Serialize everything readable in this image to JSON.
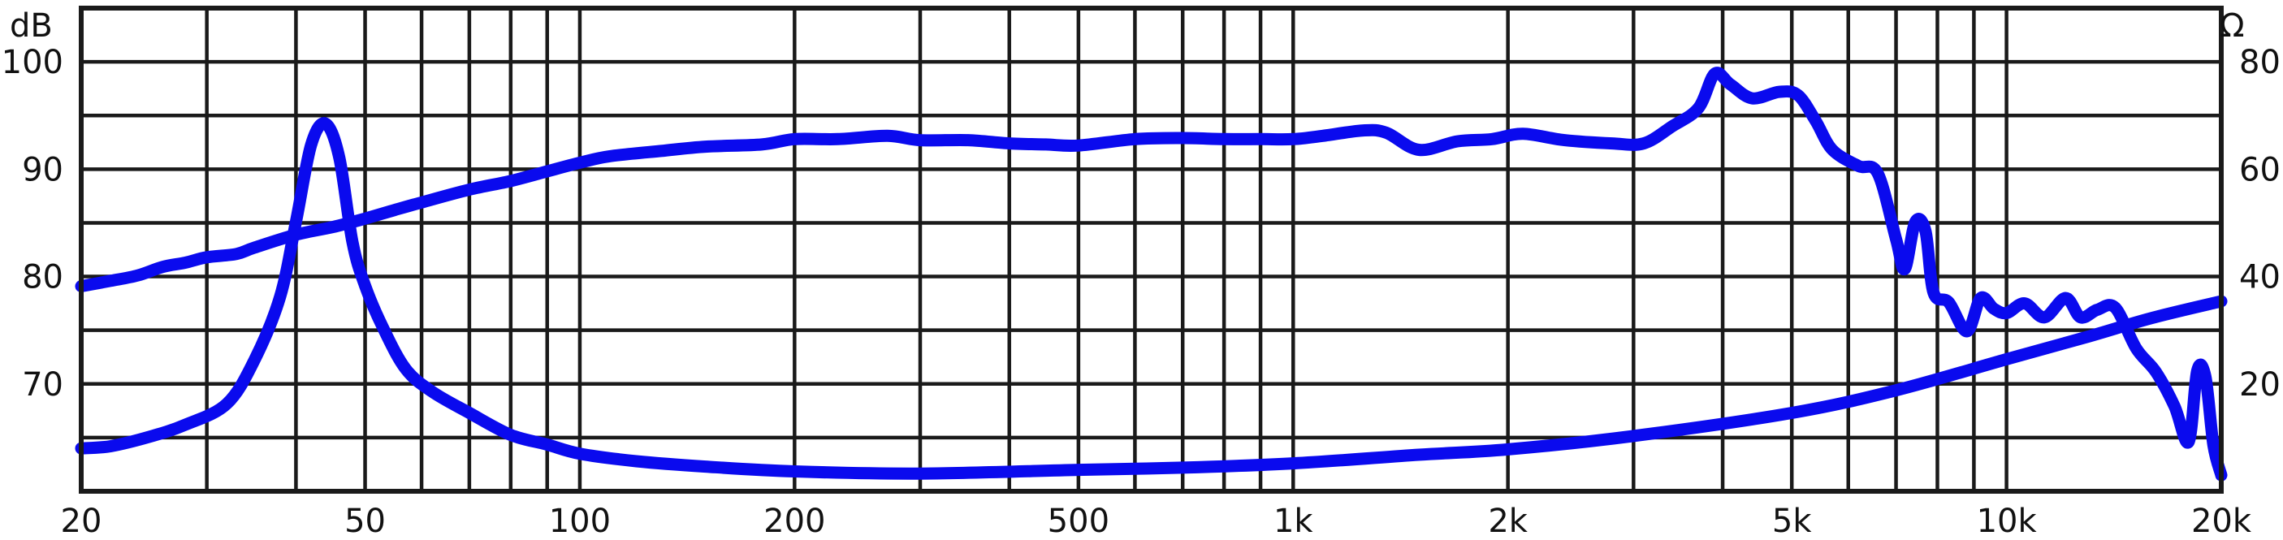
{
  "chart_data": {
    "type": "line",
    "x_scale": "log",
    "xlim": [
      20,
      20000
    ],
    "ylim_left": [
      60,
      105
    ],
    "ylim_right": [
      0,
      90
    ],
    "ylabel_left_unit": "dB",
    "ylabel_right_unit": "Ω",
    "grid": true,
    "x_ticks": [
      {
        "value": 20,
        "label": "20"
      },
      {
        "value": 50,
        "label": "50"
      },
      {
        "value": 100,
        "label": "100"
      },
      {
        "value": 200,
        "label": "200"
      },
      {
        "value": 500,
        "label": "500"
      },
      {
        "value": 1000,
        "label": "1k"
      },
      {
        "value": 2000,
        "label": "2k"
      },
      {
        "value": 5000,
        "label": "5k"
      },
      {
        "value": 10000,
        "label": "10k"
      },
      {
        "value": 20000,
        "label": "20k"
      }
    ],
    "x_minor_grid": [
      30,
      40,
      60,
      70,
      80,
      90,
      300,
      400,
      600,
      700,
      800,
      900,
      3000,
      4000,
      6000,
      7000,
      8000,
      9000
    ],
    "y_ticks_left": [
      {
        "value": 70,
        "label": "70"
      },
      {
        "value": 80,
        "label": "80"
      },
      {
        "value": 90,
        "label": "90"
      },
      {
        "value": 100,
        "label": "100"
      }
    ],
    "y_ticks_right": [
      {
        "value": 20,
        "label": "20"
      },
      {
        "value": 40,
        "label": "40"
      },
      {
        "value": 60,
        "label": "60"
      },
      {
        "value": 80,
        "label": "80"
      }
    ],
    "y_grid_left": [
      65,
      70,
      75,
      80,
      85,
      90,
      95,
      100,
      105
    ],
    "series": [
      {
        "axis": "left",
        "color": "#0a0aee",
        "points": [
          [
            20,
            79.1
          ],
          [
            22,
            79.6
          ],
          [
            24,
            80.1
          ],
          [
            26,
            80.9
          ],
          [
            28,
            81.3
          ],
          [
            30,
            81.8
          ],
          [
            33,
            82.1
          ],
          [
            35,
            82.7
          ],
          [
            40,
            83.9
          ],
          [
            45,
            84.6
          ],
          [
            50,
            85.4
          ],
          [
            55,
            86.2
          ],
          [
            60,
            86.9
          ],
          [
            70,
            88.1
          ],
          [
            80,
            88.9
          ],
          [
            90,
            89.8
          ],
          [
            100,
            90.6
          ],
          [
            110,
            91.2
          ],
          [
            130,
            91.7
          ],
          [
            150,
            92.1
          ],
          [
            180,
            92.3
          ],
          [
            200,
            92.8
          ],
          [
            230,
            92.8
          ],
          [
            270,
            93.1
          ],
          [
            300,
            92.7
          ],
          [
            350,
            92.7
          ],
          [
            400,
            92.4
          ],
          [
            450,
            92.3
          ],
          [
            500,
            92.2
          ],
          [
            600,
            92.8
          ],
          [
            700,
            92.9
          ],
          [
            800,
            92.8
          ],
          [
            900,
            92.8
          ],
          [
            1000,
            92.8
          ],
          [
            1100,
            93.1
          ],
          [
            1250,
            93.6
          ],
          [
            1350,
            93.4
          ],
          [
            1500,
            91.8
          ],
          [
            1700,
            92.6
          ],
          [
            1900,
            92.8
          ],
          [
            2100,
            93.3
          ],
          [
            2400,
            92.7
          ],
          [
            2800,
            92.4
          ],
          [
            3100,
            92.4
          ],
          [
            3400,
            94.0
          ],
          [
            3700,
            95.7
          ],
          [
            3900,
            98.9
          ],
          [
            4100,
            97.9
          ],
          [
            4400,
            96.6
          ],
          [
            4800,
            97.2
          ],
          [
            5100,
            96.9
          ],
          [
            5400,
            94.5
          ],
          [
            5700,
            91.8
          ],
          [
            6200,
            90.3
          ],
          [
            6600,
            89.6
          ],
          [
            7000,
            83.5
          ],
          [
            7200,
            80.7
          ],
          [
            7450,
            85.1
          ],
          [
            7700,
            84.2
          ],
          [
            7900,
            78.5
          ],
          [
            8300,
            77.6
          ],
          [
            8800,
            74.9
          ],
          [
            9200,
            78.0
          ],
          [
            9600,
            77.0
          ],
          [
            10000,
            76.6
          ],
          [
            10600,
            77.5
          ],
          [
            11300,
            76.2
          ],
          [
            12100,
            78.0
          ],
          [
            12700,
            76.2
          ],
          [
            13400,
            76.9
          ],
          [
            14200,
            77.1
          ],
          [
            15200,
            73.3
          ],
          [
            16200,
            71.1
          ],
          [
            17200,
            67.9
          ],
          [
            18000,
            64.6
          ],
          [
            18500,
            71.2
          ],
          [
            19000,
            70.7
          ],
          [
            19500,
            64.3
          ],
          [
            20000,
            61.5
          ]
        ]
      },
      {
        "axis": "right",
        "color": "#0a0aee",
        "points": [
          [
            20,
            8.0
          ],
          [
            22,
            8.4
          ],
          [
            25,
            10.2
          ],
          [
            28,
            12.4
          ],
          [
            32,
            16.3
          ],
          [
            35,
            24.5
          ],
          [
            38,
            36.2
          ],
          [
            40,
            50.2
          ],
          [
            42,
            64.5
          ],
          [
            44,
            68.5
          ],
          [
            46,
            62.2
          ],
          [
            48,
            46.4
          ],
          [
            50,
            38.3
          ],
          [
            53,
            30.4
          ],
          [
            57,
            22.8
          ],
          [
            62,
            18.6
          ],
          [
            70,
            14.6
          ],
          [
            80,
            10.5
          ],
          [
            90,
            8.7
          ],
          [
            100,
            7.0
          ],
          [
            120,
            5.6
          ],
          [
            150,
            4.6
          ],
          [
            200,
            3.7
          ],
          [
            300,
            3.3
          ],
          [
            500,
            4.0
          ],
          [
            700,
            4.4
          ],
          [
            1000,
            5.2
          ],
          [
            1500,
            6.8
          ],
          [
            2000,
            7.8
          ],
          [
            3000,
            10.3
          ],
          [
            5000,
            14.6
          ],
          [
            7000,
            18.8
          ],
          [
            10000,
            24.6
          ],
          [
            13000,
            28.8
          ],
          [
            16000,
            32.3
          ],
          [
            20000,
            35.4
          ]
        ]
      }
    ]
  }
}
